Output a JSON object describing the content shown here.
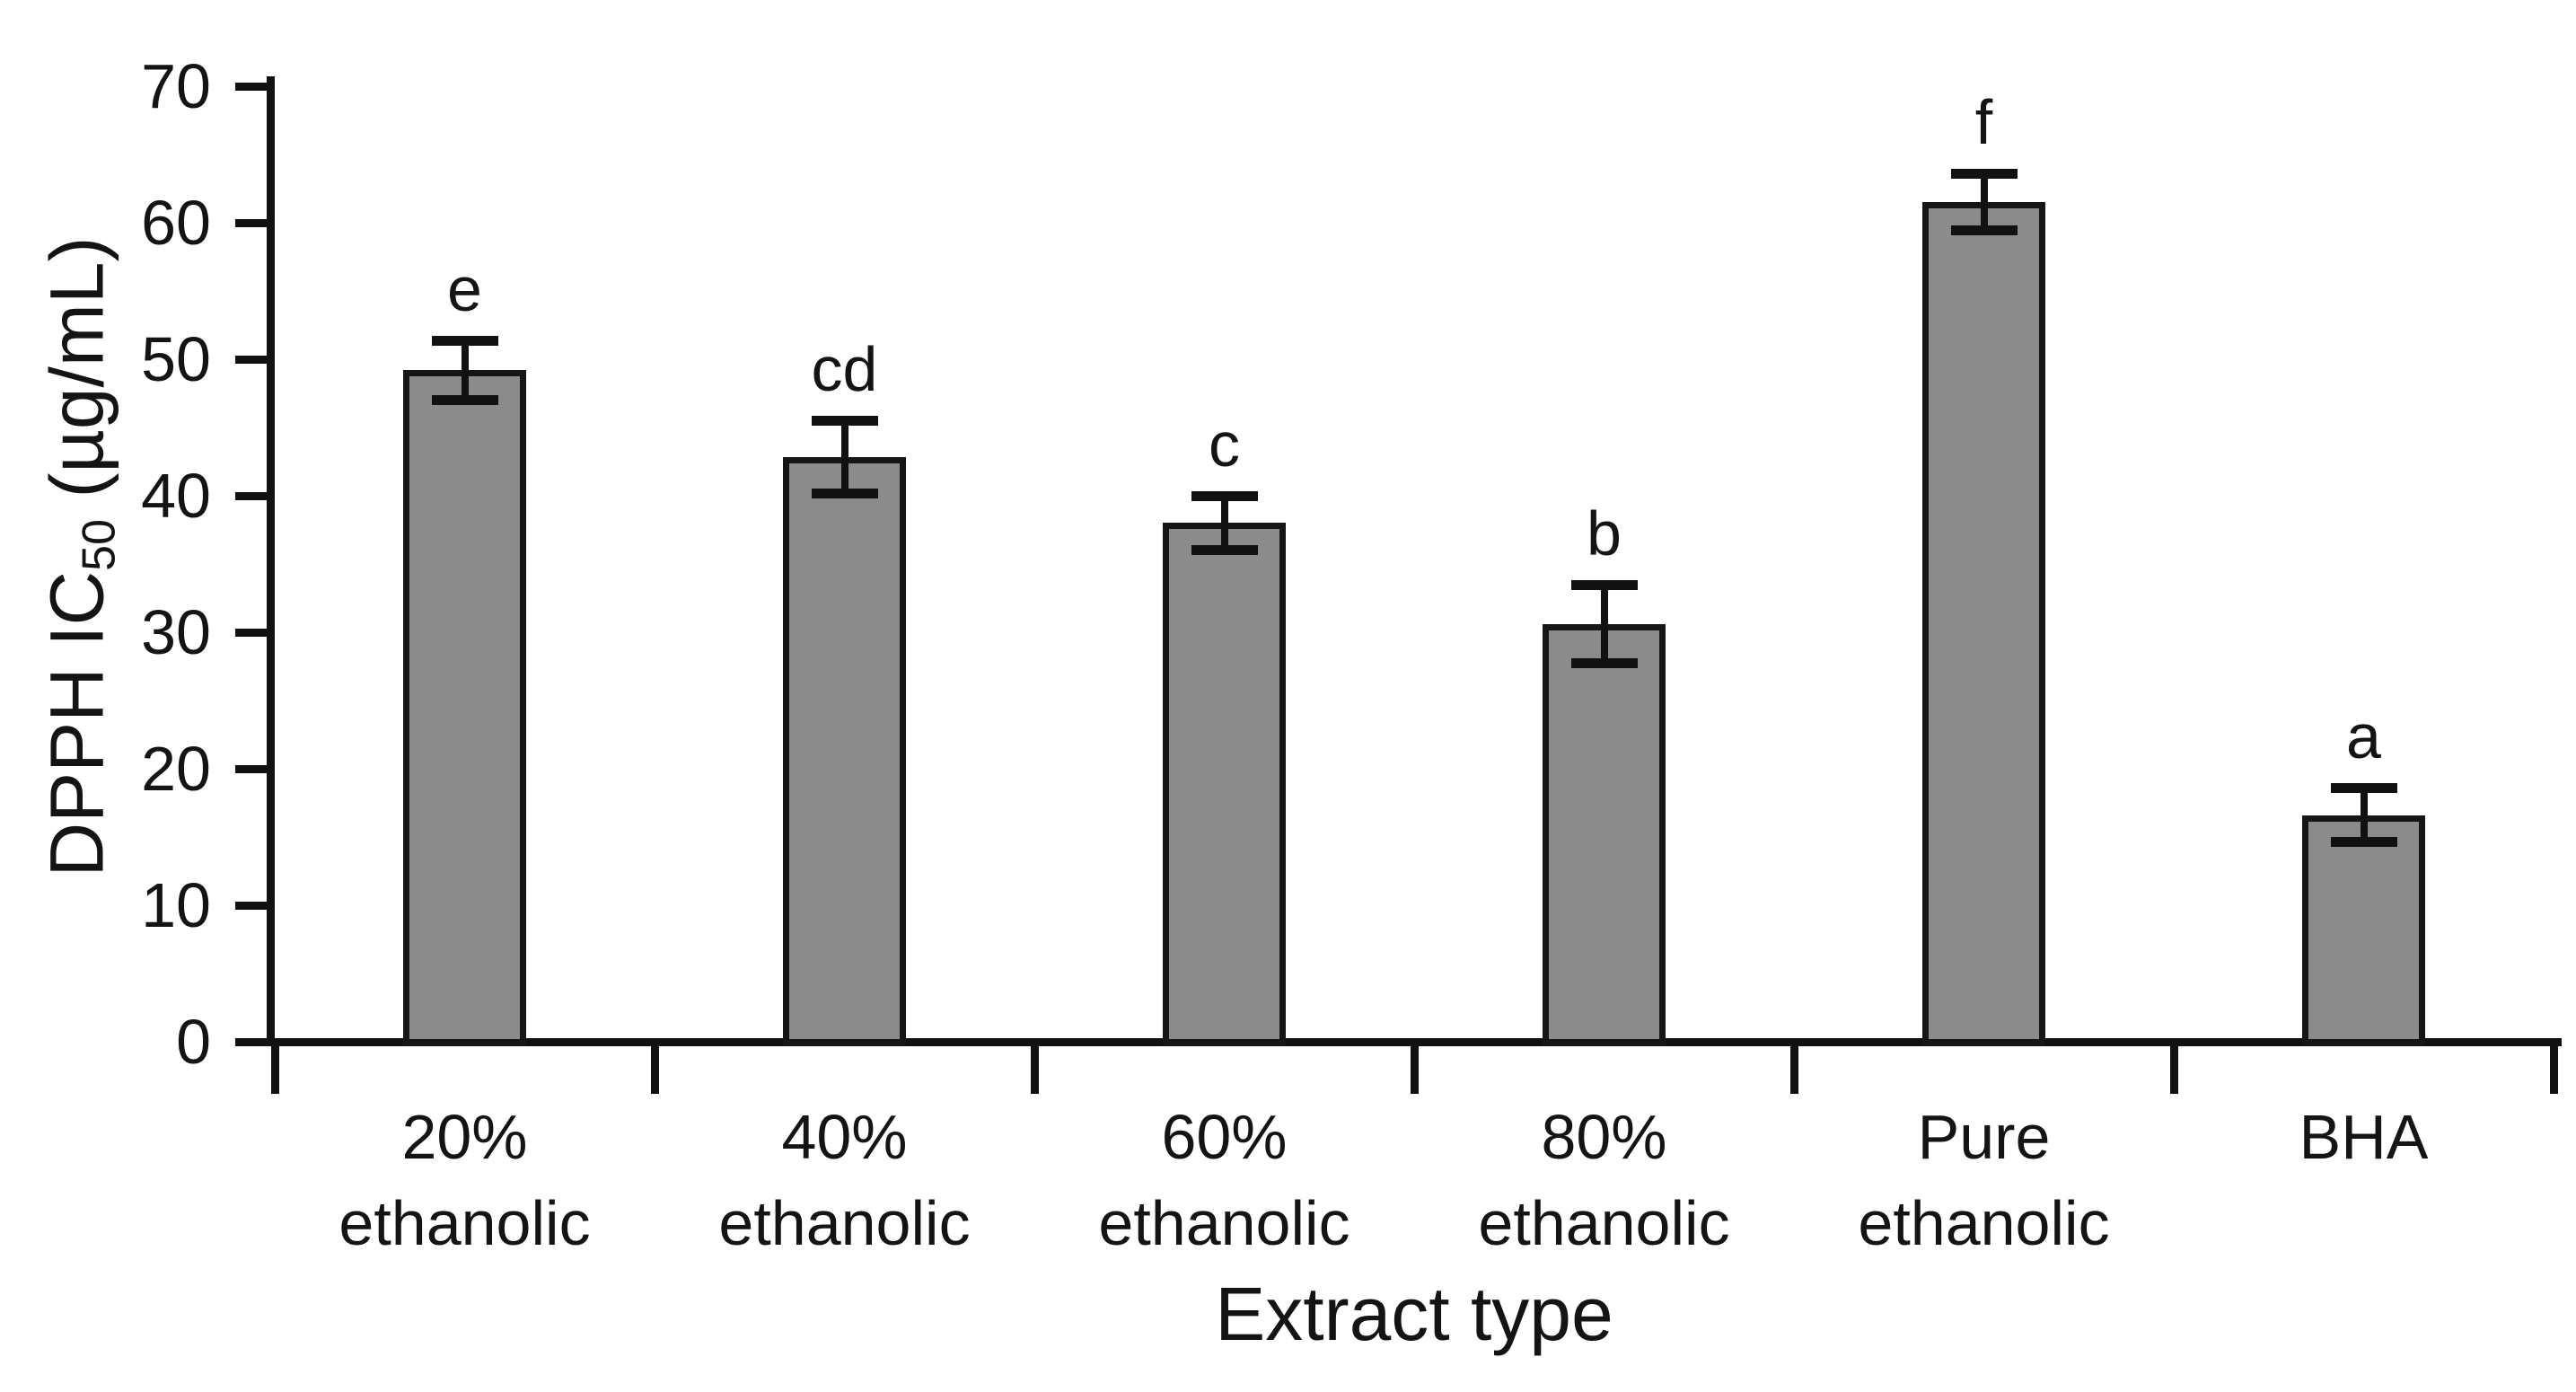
{
  "figure": {
    "background_color": "#ffffff",
    "bar_fill_color": "#8b8b8b",
    "bar_border_color": "#161616",
    "axis_color": "#111111",
    "text_color": "#141414"
  },
  "chart_data": {
    "type": "bar",
    "title": "",
    "xlabel": "Extract type",
    "ylabel": "DPPH IC50 (µg/mL)",
    "ylabel_parts": {
      "prefix": "DPPH IC",
      "sub": "50",
      "suffix": " (µg/mL)"
    },
    "ylim": [
      0,
      70
    ],
    "yticks": [
      0,
      10,
      20,
      30,
      40,
      50,
      60,
      70
    ],
    "grid": false,
    "legend": null,
    "categories": [
      "20% ethanolic",
      "40% ethanolic",
      "60% ethanolic",
      "80% ethanolic",
      "Pure ethanolic",
      "BHA"
    ],
    "category_lines": [
      [
        "20%",
        "ethanolic"
      ],
      [
        "40%",
        "ethanolic"
      ],
      [
        "60%",
        "ethanolic"
      ],
      [
        "80%",
        "ethanolic"
      ],
      [
        "Pure",
        "ethanolic"
      ],
      [
        "BHA"
      ]
    ],
    "values": [
      49.2,
      42.8,
      38.0,
      30.6,
      61.5,
      16.6
    ],
    "error_bars": [
      2.2,
      2.7,
      2.0,
      2.9,
      2.1,
      2.0
    ],
    "significance_letters": [
      "e",
      "cd",
      "c",
      "b",
      "f",
      "a"
    ]
  }
}
